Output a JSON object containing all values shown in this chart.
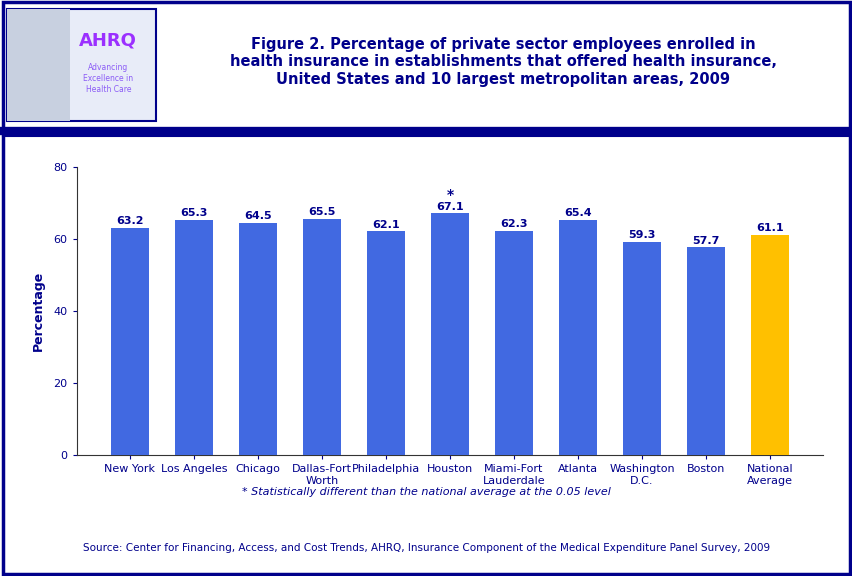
{
  "categories": [
    "New York",
    "Los Angeles",
    "Chicago",
    "Dallas-Fort\nWorth",
    "Philadelphia",
    "Houston",
    "Miami-Fort\nLauderdale",
    "Atlanta",
    "Washington\nD.C.",
    "Boston",
    "National\nAverage"
  ],
  "values": [
    63.2,
    65.3,
    64.5,
    65.5,
    62.1,
    67.1,
    62.3,
    65.4,
    59.3,
    57.7,
    61.1
  ],
  "bar_colors": [
    "#4169E1",
    "#4169E1",
    "#4169E1",
    "#4169E1",
    "#4169E1",
    "#4169E1",
    "#4169E1",
    "#4169E1",
    "#4169E1",
    "#4169E1",
    "#FFC000"
  ],
  "stat_sig": [
    false,
    false,
    false,
    false,
    false,
    true,
    false,
    false,
    false,
    false,
    false
  ],
  "ylabel": "Percentage",
  "ylim": [
    0,
    80
  ],
  "yticks": [
    0,
    20,
    40,
    60,
    80
  ],
  "title_line1": "Figure 2. Percentage of private sector employees enrolled in",
  "title_line2": "health insurance in establishments that offered health insurance,",
  "title_line3": "United States and 10 largest metropolitan areas, 2009",
  "title_color": "#00008B",
  "bar_label_color": "#00008B",
  "ylabel_color": "#00008B",
  "ytick_color": "#00008B",
  "xtick_color": "#00008B",
  "footnote": "* Statistically different than the national average at the 0.05 level",
  "source": "Source: Center for Financing, Access, and Cost Trends, AHRQ, Insurance Component of the Medical Expenditure Panel Survey, 2009",
  "border_color": "#00008B",
  "header_bar_color": "#00008B",
  "bg_color": "#FFFFFF",
  "logo_bg": "#E8ECF8",
  "tick_fontsize": 8,
  "value_fontsize": 8,
  "ylabel_fontsize": 9,
  "title_fontsize": 10.5,
  "footnote_fontsize": 8,
  "source_fontsize": 7.5
}
